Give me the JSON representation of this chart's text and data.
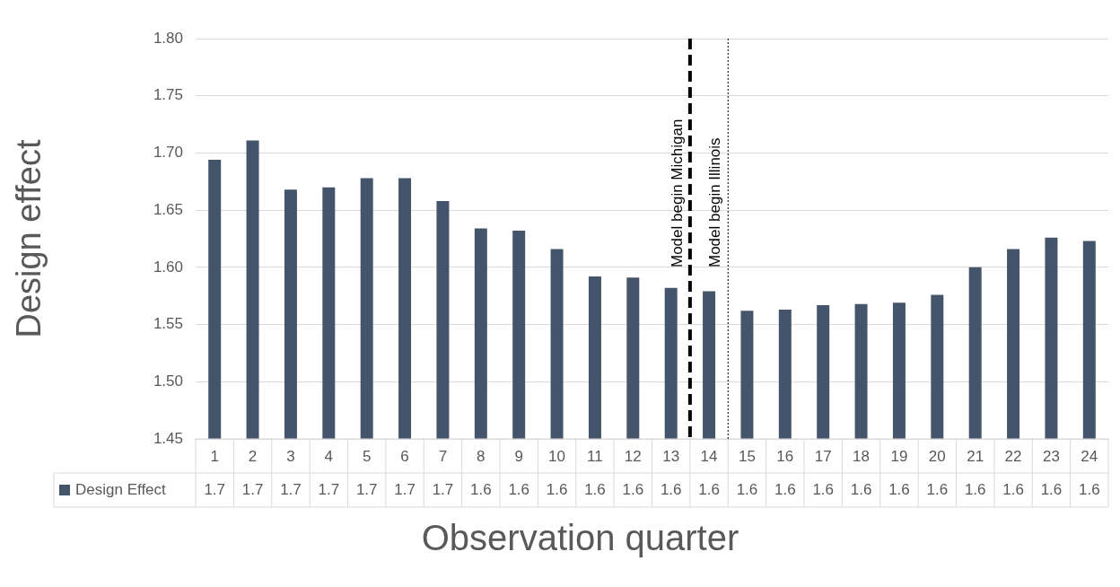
{
  "chart_data": {
    "type": "bar",
    "xlabel": "Observation quarter",
    "ylabel": "Design effect",
    "x": [
      1,
      2,
      3,
      4,
      5,
      6,
      7,
      8,
      9,
      10,
      11,
      12,
      13,
      14,
      15,
      16,
      17,
      18,
      19,
      20,
      21,
      22,
      23,
      24
    ],
    "xlim": [
      0.5,
      24.5
    ],
    "xticks": [
      1,
      2,
      3,
      4,
      5,
      6,
      7,
      8,
      9,
      10,
      11,
      12,
      13,
      14,
      15,
      16,
      17,
      18,
      19,
      20,
      21,
      22,
      23,
      24
    ],
    "series": [
      {
        "name": "Design Effect",
        "color": "#44546a",
        "values": [
          1.694,
          1.711,
          1.668,
          1.67,
          1.678,
          1.678,
          1.658,
          1.634,
          1.632,
          1.616,
          1.592,
          1.591,
          1.582,
          1.579,
          1.562,
          1.563,
          1.567,
          1.568,
          1.569,
          1.576,
          1.6,
          1.616,
          1.626,
          1.623
        ],
        "value_labels": [
          "1.7",
          "1.7",
          "1.7",
          "1.7",
          "1.7",
          "1.7",
          "1.7",
          "1.6",
          "1.6",
          "1.6",
          "1.6",
          "1.6",
          "1.6",
          "1.6",
          "1.6",
          "1.6",
          "1.6",
          "1.6",
          "1.6",
          "1.6",
          "1.6",
          "1.6",
          "1.6",
          "1.6"
        ]
      }
    ],
    "ylim": [
      1.45,
      1.8
    ],
    "yticks": [
      {
        "value": 1.45,
        "label": "1.45"
      },
      {
        "value": 1.5,
        "label": "1.50"
      },
      {
        "value": 1.55,
        "label": "1.55"
      },
      {
        "value": 1.6,
        "label": "1.60"
      },
      {
        "value": 1.65,
        "label": "1.65"
      },
      {
        "value": 1.7,
        "label": "1.70"
      },
      {
        "value": 1.75,
        "label": "1.75"
      },
      {
        "value": 1.8,
        "label": "1.80"
      }
    ],
    "grid": "y",
    "legend": "bottom",
    "ref_lines": [
      {
        "axis": "x",
        "value": 13.5,
        "label": "Model begin Michigan",
        "color": "#000000",
        "line_style": "dashed"
      },
      {
        "axis": "x",
        "value": 14.5,
        "label": "Model begin Illinois",
        "color": "#000000",
        "line_style": "dotted"
      }
    ]
  }
}
